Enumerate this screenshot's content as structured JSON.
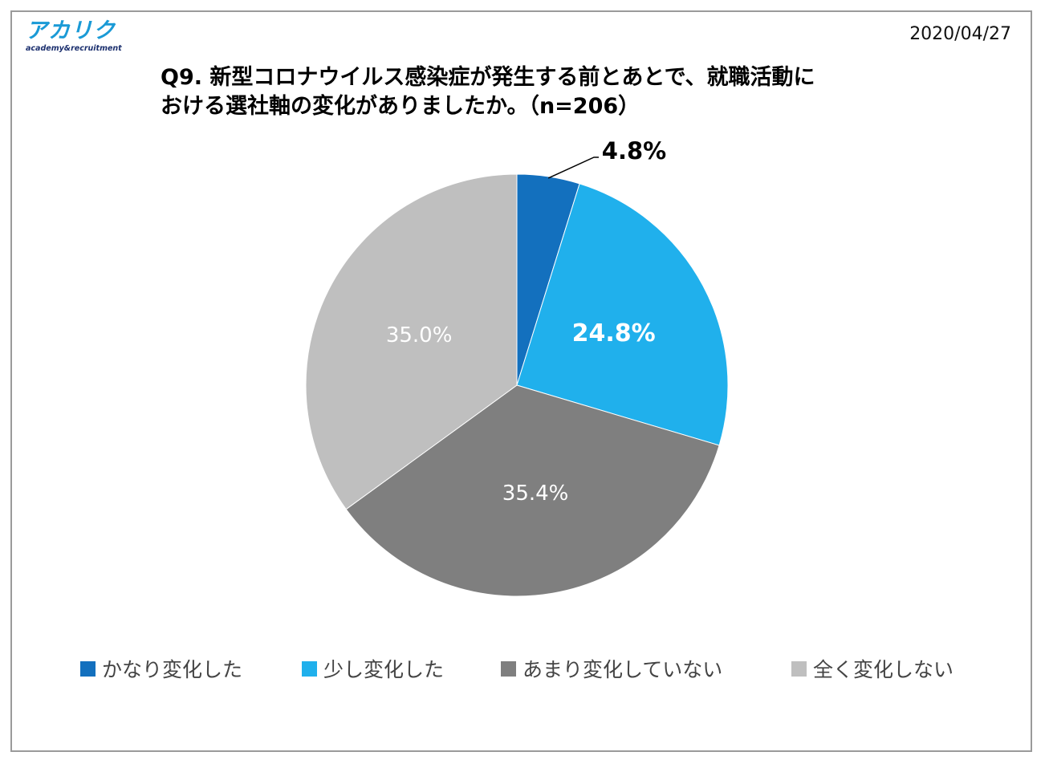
{
  "logo": {
    "main": "アカリク",
    "sub": "academy&recruitment"
  },
  "date": "2020/04/27",
  "title": {
    "line1": "Q9. 新型コロナウイルス感染症が発生する前とあとで、就職活動に",
    "line2": "おける選社軸の変化がありましたか。（n=206）"
  },
  "chart_data": {
    "type": "pie",
    "title": "Q9. 新型コロナウイルス感染症が発生する前とあとで、就職活動における選社軸の変化がありましたか。（n=206）",
    "categories": [
      "かなり変化した",
      "少し変化した",
      "あまり変化していない",
      "全く変化しない"
    ],
    "values": [
      4.8,
      24.8,
      35.4,
      35.0
    ],
    "labels": [
      "4.8%",
      "24.8%",
      "35.4%",
      "35.0%"
    ],
    "colors": [
      "#1370be",
      "#20b0ec",
      "#7f7f7f",
      "#bfbfbf"
    ],
    "label_colors": [
      "#000000",
      "#ffffff",
      "#ffffff",
      "#ffffff"
    ],
    "start_angle_deg": 0,
    "direction": "clockwise",
    "legend_position": "bottom"
  }
}
